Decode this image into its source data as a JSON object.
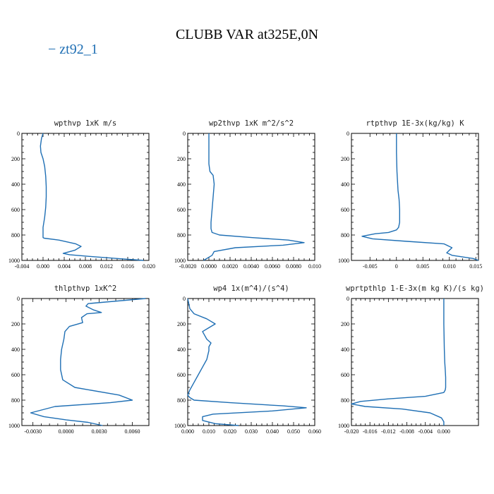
{
  "figure": {
    "title": "CLUBB VAR at325E,0N",
    "legend": [
      {
        "name": "zt92_1",
        "color": "#1f6fb4"
      }
    ],
    "line_color": "#1f6fb4"
  },
  "chart_data": [
    {
      "type": "line",
      "title": "wpthvp  1xK m/s",
      "xlim": [
        -0.004,
        0.02
      ],
      "ylim": [
        1000,
        0
      ],
      "xticks": [
        -0.004,
        0.0,
        0.004,
        0.008,
        0.012,
        0.016,
        0.02
      ],
      "xtick_labels": [
        "-0.004",
        "0.000",
        "0.004",
        "0.008",
        "0.012",
        "0.016",
        "0.020"
      ],
      "yticks": [
        0,
        200,
        400,
        600,
        800,
        1000
      ],
      "ytick_labels": [
        "0",
        "200",
        "400",
        "600",
        "800",
        "1000"
      ],
      "series": [
        {
          "x": [
            0.0,
            -0.0003,
            -0.0005,
            -0.0004,
            0.0,
            0.0003,
            0.0005,
            0.0006,
            0.0006,
            0.0005,
            0.0003,
            0.0,
            0.0,
            0.0002,
            0.003,
            0.0062,
            0.0072,
            0.006,
            0.0038,
            0.005,
            0.0092,
            0.014,
            0.019
          ],
          "y": [
            0,
            40,
            100,
            150,
            200,
            260,
            340,
            420,
            500,
            580,
            660,
            740,
            820,
            825,
            840,
            870,
            890,
            920,
            945,
            955,
            970,
            985,
            1000
          ]
        }
      ]
    },
    {
      "type": "line",
      "title": "wp2thvp  1xK m^2/s^2",
      "xlim": [
        -0.002,
        0.01
      ],
      "ylim": [
        1000,
        0
      ],
      "xticks": [
        -0.002,
        0.0,
        0.002,
        0.004,
        0.006,
        0.008,
        0.01
      ],
      "xtick_labels": [
        "-0.0020",
        "0.0000",
        "0.0020",
        "0.0040",
        "0.0060",
        "0.0080",
        "0.010"
      ],
      "yticks": [
        0,
        200,
        400,
        600,
        800,
        1000
      ],
      "ytick_labels": [
        "0",
        "200",
        "400",
        "600",
        "800",
        "1000"
      ],
      "series": [
        {
          "x": [
            0.0,
            0.0,
            0.0,
            0.0001,
            0.0004,
            0.0005,
            0.0004,
            0.0003,
            0.0002,
            0.0002,
            0.0003,
            0.001,
            0.004,
            0.0075,
            0.009,
            0.007,
            0.0025,
            0.0005,
            0.0003,
            -0.0005
          ],
          "y": [
            0,
            100,
            240,
            300,
            330,
            400,
            500,
            600,
            700,
            750,
            780,
            800,
            820,
            840,
            860,
            880,
            900,
            930,
            960,
            1000
          ]
        }
      ]
    },
    {
      "type": "line",
      "title": "rtpthvp  1E-3x(kg/kg) K",
      "xlim": [
        -0.0085,
        0.0155
      ],
      "ylim": [
        1000,
        0
      ],
      "xticks": [
        -0.005,
        0.0,
        0.005,
        0.01,
        0.015
      ],
      "xtick_labels": [
        "-0.005",
        "0",
        "0.005",
        "0.010",
        "0.015"
      ],
      "yticks": [
        0,
        200,
        400,
        600,
        800,
        1000
      ],
      "ytick_labels": [
        "0",
        "200",
        "400",
        "600",
        "800",
        "1000"
      ],
      "series": [
        {
          "x": [
            0.0,
            0.0,
            0.0001,
            0.0003,
            0.0005,
            0.0006,
            0.0006,
            0.0004,
            0.0,
            -0.0015,
            -0.004,
            -0.0065,
            -0.0045,
            0.002,
            0.009,
            0.0105,
            0.0095,
            0.0105,
            0.0145,
            0.0155
          ],
          "y": [
            0,
            150,
            300,
            450,
            520,
            600,
            700,
            740,
            760,
            780,
            790,
            810,
            830,
            850,
            870,
            900,
            940,
            960,
            985,
            1000
          ]
        }
      ]
    },
    {
      "type": "line",
      "title": "thlpthvp  1xK^2",
      "xlim": [
        -0.004,
        0.0075
      ],
      "ylim": [
        1000,
        0
      ],
      "xticks": [
        -0.003,
        0.0,
        0.003,
        0.006
      ],
      "xtick_labels": [
        "-0.0030",
        "0.0000",
        "0.0030",
        "0.0060"
      ],
      "yticks": [
        0,
        200,
        400,
        600,
        800,
        1000
      ],
      "ytick_labels": [
        "0",
        "200",
        "400",
        "600",
        "800",
        "1000"
      ],
      "series": [
        {
          "x": [
            0.0072,
            0.002,
            0.0018,
            0.0025,
            0.0032,
            0.0019,
            0.0014,
            0.0015,
            0.0003,
            -0.0001,
            -0.0002,
            -0.0004,
            -0.0005,
            -0.0005,
            -0.0003,
            0.0008,
            0.0048,
            0.006,
            0.004,
            -0.001,
            -0.0032,
            -0.002,
            0.0,
            0.002,
            0.0033
          ],
          "y": [
            0,
            40,
            60,
            90,
            110,
            120,
            150,
            190,
            220,
            260,
            320,
            400,
            480,
            560,
            640,
            700,
            760,
            800,
            820,
            850,
            900,
            930,
            955,
            975,
            1000
          ]
        }
      ]
    },
    {
      "type": "line",
      "title": "wp4  1x(m^4)/(s^4)",
      "xlim": [
        0.0,
        0.06
      ],
      "ylim": [
        1000,
        0
      ],
      "xticks": [
        0.0,
        0.01,
        0.02,
        0.03,
        0.04,
        0.05,
        0.06
      ],
      "xtick_labels": [
        "0.000",
        "0.010",
        "0.020",
        "0.030",
        "0.040",
        "0.050",
        "0.060"
      ],
      "yticks": [
        0,
        200,
        400,
        600,
        800,
        1000
      ],
      "ytick_labels": [
        "0",
        "200",
        "400",
        "600",
        "800",
        "1000"
      ],
      "series": [
        {
          "x": [
            0.0,
            0.001,
            0.003,
            0.009,
            0.013,
            0.01,
            0.007,
            0.008,
            0.009,
            0.011,
            0.01,
            0.01,
            0.009,
            0.007,
            0.005,
            0.003,
            0.001,
            0.0,
            0.001,
            0.003,
            0.02,
            0.045,
            0.056,
            0.04,
            0.012,
            0.007,
            0.007,
            0.013,
            0.024
          ],
          "y": [
            0,
            80,
            120,
            160,
            200,
            230,
            260,
            290,
            320,
            350,
            380,
            410,
            480,
            540,
            600,
            660,
            720,
            760,
            780,
            800,
            820,
            845,
            860,
            885,
            910,
            930,
            960,
            985,
            1000
          ]
        }
      ]
    },
    {
      "type": "line",
      "title": "wprtpthlp  1-E-3x(m kg K)/(s kg)",
      "xlim": [
        -0.02,
        0.0075
      ],
      "ylim": [
        1000,
        0
      ],
      "xticks": [
        -0.02,
        -0.016,
        -0.012,
        -0.008,
        -0.004,
        0.0
      ],
      "xtick_labels": [
        "-0.020",
        "-0.016",
        "-0.012",
        "-0.008",
        "-0.004",
        "0.000"
      ],
      "yticks": [
        0,
        200,
        400,
        600,
        800,
        1000
      ],
      "ytick_labels": [
        "0",
        "200",
        "400",
        "600",
        "800",
        "1000"
      ],
      "series": [
        {
          "x": [
            0.0,
            0.0,
            0.0001,
            0.0002,
            0.0003,
            0.0004,
            0.0004,
            0.0004,
            0.0003,
            0.0,
            -0.004,
            -0.012,
            -0.018,
            -0.02,
            -0.017,
            -0.009,
            -0.003,
            -0.0005,
            0.0,
            0.0
          ],
          "y": [
            0,
            200,
            400,
            500,
            560,
            620,
            680,
            700,
            720,
            740,
            770,
            790,
            810,
            830,
            850,
            870,
            900,
            940,
            970,
            1000
          ]
        }
      ]
    }
  ]
}
